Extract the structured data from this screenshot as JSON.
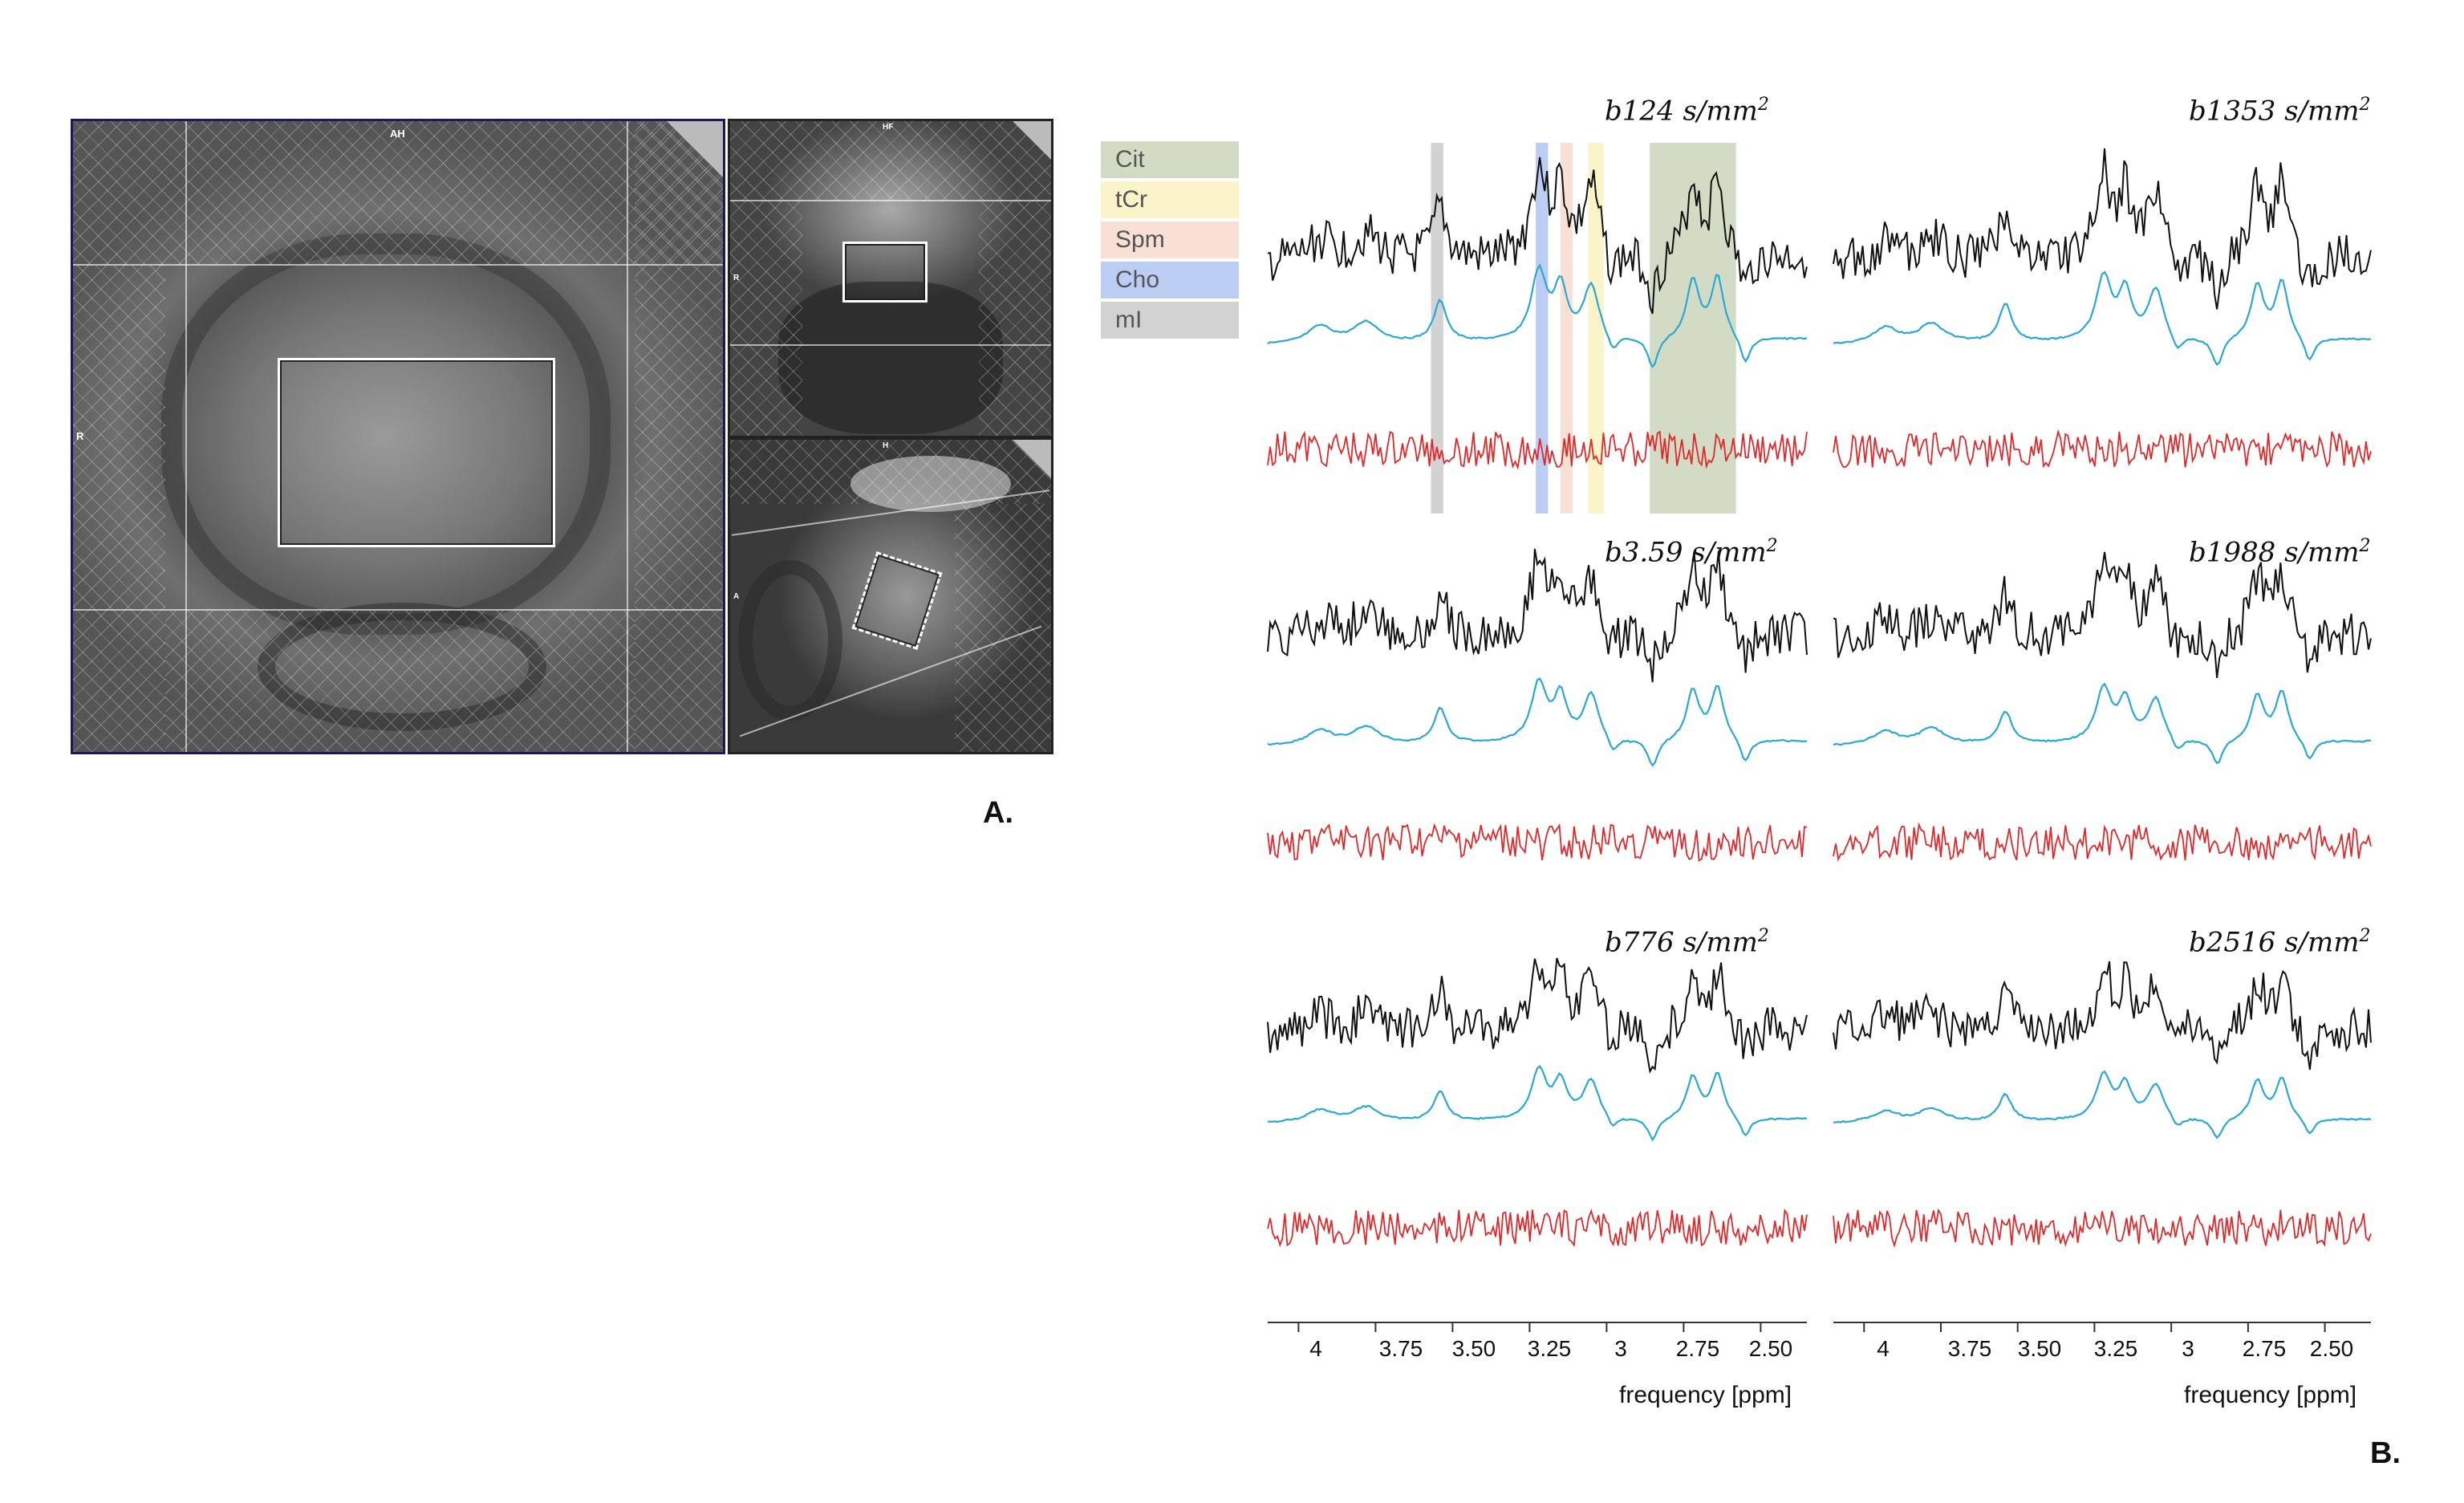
{
  "panel_a": {
    "label": "A.",
    "main_view_labels": {
      "top": "AH",
      "left": "R"
    },
    "top_view_labels": {
      "top": "HF",
      "left": "R"
    },
    "bottom_view_labels": {
      "top": "H",
      "left": "A"
    }
  },
  "panel_b": {
    "label": "B.",
    "legend": [
      {
        "name": "Cit",
        "color": "#d2dcc4"
      },
      {
        "name": "tCr",
        "color": "#faf4c8"
      },
      {
        "name": "Spm",
        "color": "#f8e0d4"
      },
      {
        "name": "Cho",
        "color": "#bccdf4"
      },
      {
        "name": "mI",
        "color": "#d2d2d2"
      }
    ],
    "spectra": [
      {
        "b": "b124",
        "unit": "s/mm",
        "exp": "2"
      },
      {
        "b": "b1353",
        "unit": "s/mm",
        "exp": "2"
      },
      {
        "b": "b3.59",
        "unit": "s/mm",
        "exp": "2"
      },
      {
        "b": "b1988",
        "unit": "s/mm",
        "exp": "2"
      },
      {
        "b": "b776",
        "unit": "s/mm",
        "exp": "2"
      },
      {
        "b": "b2516",
        "unit": "s/mm",
        "exp": "2"
      }
    ],
    "x_axis": {
      "ticks": [
        "4",
        "3.75",
        "3.50",
        "3.25",
        "3",
        "2.75",
        "2.50"
      ],
      "tick_values": [
        4,
        3.75,
        3.5,
        3.25,
        3,
        2.75,
        2.5
      ],
      "range": [
        4.1,
        2.35
      ],
      "label": "frequency [ppm]"
    },
    "trace_colors": {
      "measured": "#111111",
      "fit": "#29a8d8",
      "residual": "#e0282a"
    },
    "highlight_bands_ppm": [
      {
        "metabolite": "mI",
        "from": 3.57,
        "to": 3.53
      },
      {
        "metabolite": "Cho",
        "from": 3.23,
        "to": 3.19
      },
      {
        "metabolite": "Spm",
        "from": 3.15,
        "to": 3.11
      },
      {
        "metabolite": "tCr",
        "from": 3.06,
        "to": 3.01
      },
      {
        "metabolite": "Cit",
        "from": 2.86,
        "to": 2.58
      }
    ]
  }
}
